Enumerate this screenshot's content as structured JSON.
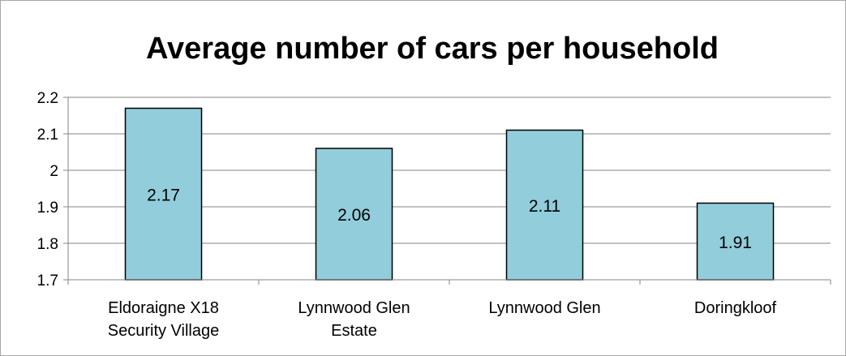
{
  "chart_data": {
    "type": "bar",
    "title": "Average number of cars per household",
    "categories": [
      [
        "Eldoraigne X18",
        "Security Village"
      ],
      [
        "Lynnwood Glen",
        "Estate"
      ],
      [
        "Lynnwood Glen"
      ],
      [
        "Doringkloof"
      ]
    ],
    "values": [
      2.17,
      2.06,
      2.11,
      1.91
    ],
    "data_labels": [
      "2.17",
      "2.06",
      "2.11",
      "1.91"
    ],
    "ylim": [
      1.7,
      2.2
    ],
    "yticks": [
      1.7,
      1.8,
      1.9,
      2.0,
      2.1,
      2.2
    ],
    "ytick_labels": [
      "1.7",
      "1.8",
      "1.9",
      "2",
      "2.1",
      "2.2"
    ],
    "xlabel": "",
    "ylabel": "",
    "grid": true,
    "legend": "none",
    "colors": {
      "bar_fill": "#92cddc",
      "bar_stroke": "#000000",
      "grid": "#868686",
      "axis": "#868686"
    }
  }
}
